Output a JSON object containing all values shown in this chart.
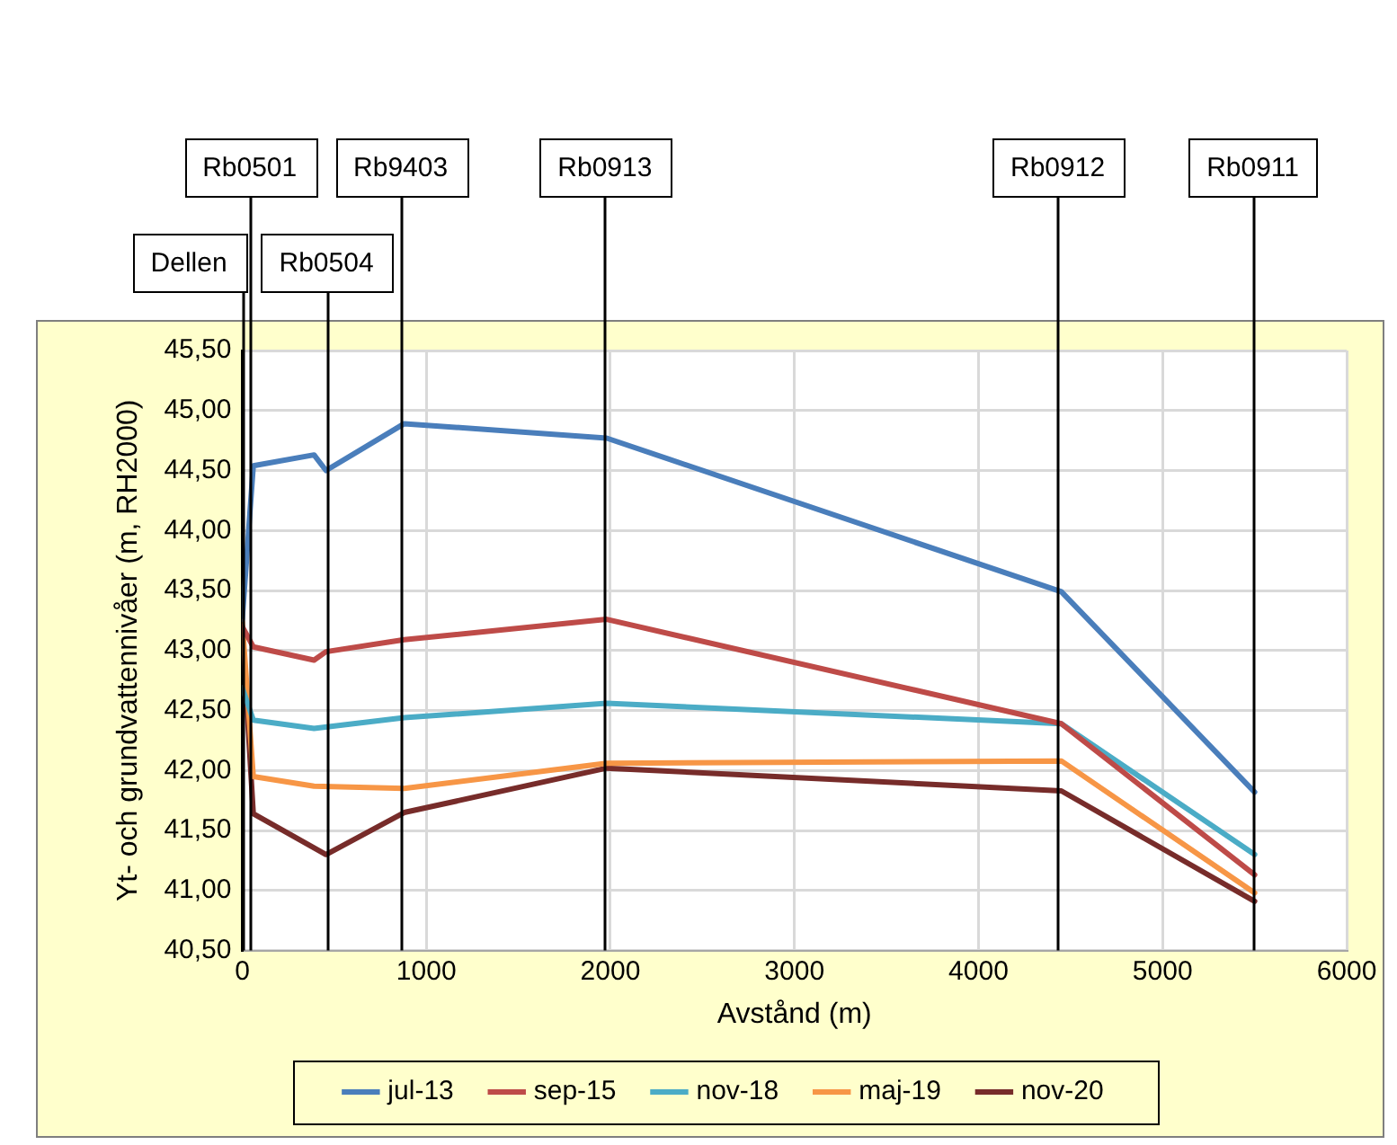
{
  "chart_data": {
    "type": "line",
    "xlabel": "Avstånd (m)",
    "ylabel": "Yt- och grundvattennivåer (m, RH2000)",
    "xlim": [
      0,
      6000
    ],
    "xticks": [
      0,
      1000,
      2000,
      3000,
      4000,
      5000,
      6000
    ],
    "ylim": [
      40.5,
      45.5
    ],
    "yticks": [
      {
        "value": 40.5,
        "label": "40,50"
      },
      {
        "value": 41,
        "label": "41,00"
      },
      {
        "value": 41.5,
        "label": "41,50"
      },
      {
        "value": 42,
        "label": "42,00"
      },
      {
        "value": 42.5,
        "label": "42,50"
      },
      {
        "value": 43,
        "label": "43,00"
      },
      {
        "value": 43.5,
        "label": "43,50"
      },
      {
        "value": 44,
        "label": "44,00"
      },
      {
        "value": 44.5,
        "label": "44,50"
      },
      {
        "value": 45,
        "label": "45,00"
      },
      {
        "value": 45.5,
        "label": "45,50"
      }
    ],
    "grid": true,
    "legend": "bottom",
    "marker": "none",
    "line_style": "solid",
    "series": [
      {
        "name": "jul-13",
        "color": "#4a7ebb",
        "x": [
          0,
          60,
          390,
          455,
          880,
          1980,
          4450,
          5500
        ],
        "values": [
          43.26,
          44.54,
          44.63,
          44.5,
          44.89,
          44.77,
          43.49,
          41.82
        ]
      },
      {
        "name": "sep-15",
        "color": "#be4b48",
        "x": [
          0,
          60,
          390,
          455,
          880,
          1980,
          4450,
          5500
        ],
        "values": [
          43.2,
          43.03,
          42.92,
          42.99,
          43.09,
          43.26,
          42.39,
          41.13
        ]
      },
      {
        "name": "nov-18",
        "color": "#4bacc6",
        "x": [
          0,
          60,
          390,
          880,
          1980,
          4450,
          5500
        ],
        "values": [
          42.69,
          42.42,
          42.35,
          42.44,
          42.56,
          42.39,
          41.3
        ]
      },
      {
        "name": "maj-19",
        "color": "#f79646",
        "x": [
          0,
          60,
          390,
          880,
          1980,
          4450,
          5500
        ],
        "values": [
          43.24,
          41.95,
          41.87,
          41.85,
          42.06,
          42.08,
          40.98
        ]
      },
      {
        "name": "nov-20",
        "color": "#772c2a",
        "x": [
          0,
          60,
          455,
          880,
          1980,
          4450,
          5500
        ],
        "values": [
          43.2,
          41.64,
          41.3,
          41.65,
          42.02,
          41.83,
          40.91
        ]
      }
    ],
    "ref_lines": [
      {
        "axis": "x",
        "value": 0,
        "label": "Dellen",
        "color": "#000000"
      },
      {
        "axis": "x",
        "value": 40,
        "label": "Rb0501",
        "color": "#000000"
      },
      {
        "axis": "x",
        "value": 457,
        "label": "Rb0504",
        "color": "#000000"
      },
      {
        "axis": "x",
        "value": 860,
        "label": "Rb9403",
        "color": "#000000"
      },
      {
        "axis": "x",
        "value": 1970,
        "label": "Rb0913",
        "color": "#000000"
      },
      {
        "axis": "x",
        "value": 4430,
        "label": "Rb0912",
        "color": "#000000"
      },
      {
        "axis": "x",
        "value": 5490,
        "label": "Rb0911",
        "color": "#000000"
      }
    ]
  }
}
